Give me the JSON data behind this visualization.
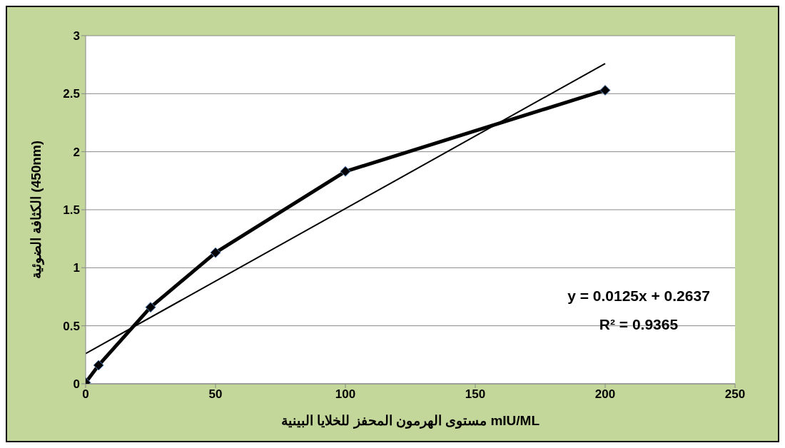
{
  "chart_data": {
    "type": "line",
    "xlabel": "مستوى الهرمون المحفز للخلايا البينية mIU/ML",
    "ylabel": "الكثافة الضوئية (450nm)",
    "xlim": [
      0,
      250
    ],
    "xticks": [
      0,
      50,
      100,
      150,
      200,
      250
    ],
    "ylim": [
      0,
      3
    ],
    "yticks": [
      0,
      0.5,
      1,
      1.5,
      2,
      2.5,
      3
    ],
    "grid": "y",
    "series": [
      {
        "x": [
          0,
          5,
          25,
          50,
          100,
          200
        ],
        "values": [
          0.01,
          0.16,
          0.66,
          1.13,
          1.83,
          2.53
        ],
        "color": "#000000",
        "marker": "diamond"
      },
      {
        "x": [
          0,
          200
        ],
        "values": [
          0.26,
          2.76
        ],
        "color": "#000000",
        "marker": "none"
      }
    ],
    "annotations": [
      "y = 0.0125x + 0.2637",
      "R² = 0.9365"
    ]
  }
}
